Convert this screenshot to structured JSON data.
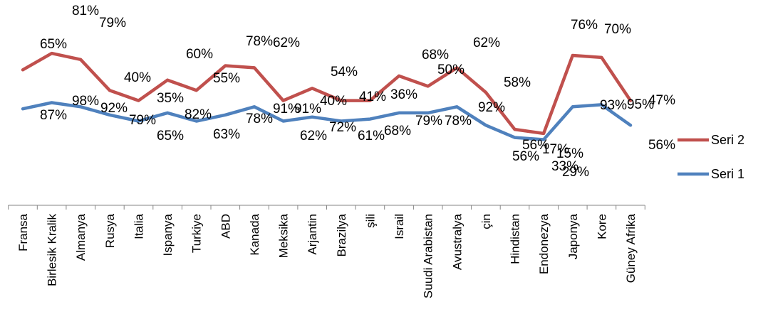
{
  "chart_data": {
    "type": "line",
    "categories": [
      "Fransa",
      "Birlesik Kralik",
      "Almanya",
      "Rusya",
      "Italia",
      "Ispanya",
      "Turkiye",
      "ABD",
      "Kanada",
      "Meksika",
      "Arjantin",
      "Brazilya",
      "şili",
      "Israil",
      "Suudi Arabistan",
      "Avustralya",
      "çin",
      "Hindistan",
      "Endonezya",
      "Japonya",
      "Kore",
      "Güney Afrika"
    ],
    "series": [
      {
        "name": "Seri 2",
        "color": "#C0504D",
        "values": [
          0.66,
          0.74,
          0.71,
          0.56,
          0.51,
          0.61,
          0.56,
          0.68,
          0.67,
          0.51,
          0.57,
          0.51,
          0.51,
          0.63,
          0.58,
          0.67,
          0.55,
          0.37,
          0.35,
          0.73,
          0.72,
          0.51
        ],
        "labels": [
          "65%",
          "81%",
          "79%",
          "40%",
          "35%",
          "60%",
          "55%",
          "78%",
          "62%",
          "91%",
          "40%",
          "54%",
          "41%",
          "36%",
          "68%",
          "50%",
          "62%",
          "58%",
          "56%",
          "17%",
          "76%",
          "70%"
        ]
      },
      {
        "name": "Seri 1",
        "color": "#4F81BD",
        "values": [
          0.47,
          0.5,
          0.48,
          0.44,
          0.41,
          0.45,
          0.41,
          0.44,
          0.48,
          0.41,
          0.43,
          0.41,
          0.42,
          0.45,
          0.45,
          0.48,
          0.39,
          0.33,
          0.32,
          0.48,
          0.49,
          0.39
        ],
        "labels": [
          "87%",
          "98%",
          "92%",
          "79%",
          "65%",
          "82%",
          "63%",
          "78%",
          "91%",
          "62%",
          "72%",
          "61%",
          "68%",
          "79%",
          "78%",
          "92%",
          "56%",
          "33%",
          "15%",
          "29%",
          "93%",
          "95%"
        ]
      }
    ],
    "extra_labels": [
      "47%",
      "56%"
    ],
    "legend_position": "right",
    "grid": false
  }
}
